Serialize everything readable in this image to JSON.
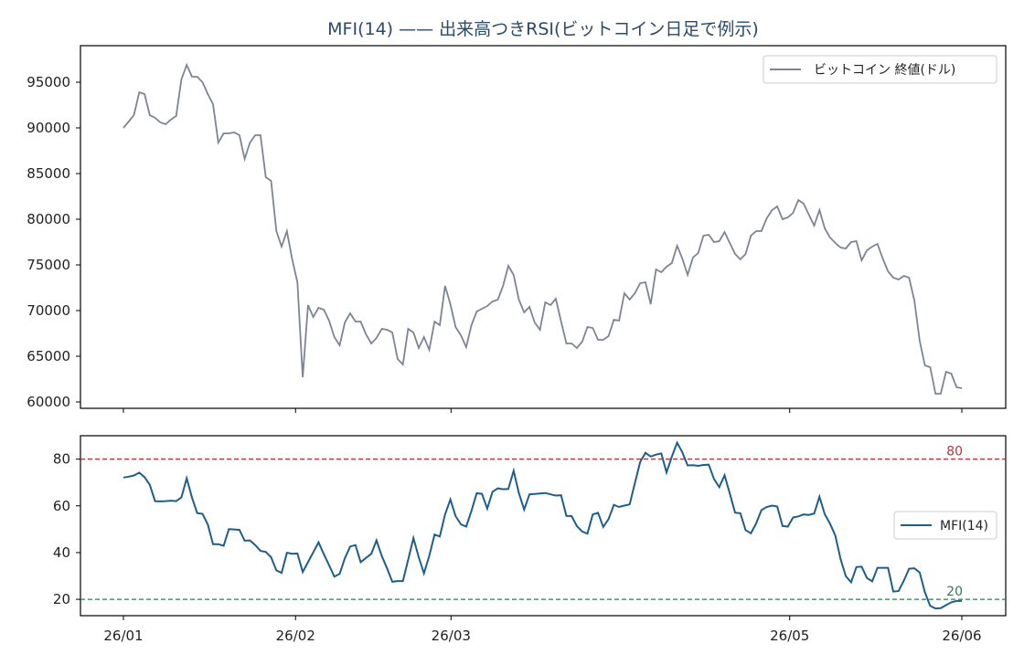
{
  "chart_data": [
    {
      "type": "line",
      "title": "MFI(14) —— 出来高つきRSI(ビットコイン日足で例示)",
      "xlabel": "",
      "ylabel": "",
      "x_range": [
        "2026-01-01",
        "2026-06-01"
      ],
      "ylim": [
        59300,
        99000
      ],
      "y_ticks": [
        60000,
        65000,
        70000,
        75000,
        80000,
        85000,
        90000,
        95000
      ],
      "grid": false,
      "legend": "top-right",
      "series": [
        {
          "name": "ビットコイン 終値(ドル)",
          "color": "#7d8594",
          "values": [
            90000,
            90700,
            91400,
            93900,
            93700,
            91400,
            91100,
            90600,
            90400,
            90900,
            91300,
            95300,
            96900,
            95600,
            95600,
            95000,
            93700,
            92600,
            88400,
            89400,
            89400,
            89500,
            89200,
            86600,
            88400,
            89200,
            89200,
            84600,
            84200,
            78700,
            77000,
            78700,
            75600,
            73100,
            62700,
            70600,
            69300,
            70300,
            70100,
            68900,
            67100,
            66200,
            68700,
            69700,
            68800,
            68800,
            67400,
            66400,
            67000,
            68000,
            67900,
            67600,
            64700,
            64100,
            68000,
            67600,
            65900,
            67100,
            65700,
            68800,
            68400,
            72700,
            70700,
            68200,
            67300,
            66000,
            68400,
            69900,
            70200,
            70500,
            71000,
            71200,
            72700,
            74900,
            73900,
            71200,
            69800,
            70400,
            68700,
            67900,
            70900,
            70600,
            71300,
            68800,
            66400,
            66400,
            65900,
            66600,
            68200,
            68100,
            66800,
            66800,
            67200,
            69000,
            68900,
            71900,
            71200,
            71900,
            73000,
            73100,
            70700,
            74500,
            74200,
            74800,
            75200,
            77100,
            75700,
            73900,
            75800,
            76300,
            78200,
            78300,
            77500,
            77600,
            78600,
            77400,
            76200,
            75600,
            76200,
            78200,
            78700,
            78700,
            80100,
            81000,
            81400,
            80000,
            80200,
            80700,
            82100,
            81700,
            80500,
            79300,
            81000,
            79000,
            78000,
            77400,
            76900,
            76800,
            77500,
            77600,
            75500,
            76600,
            77000,
            77300,
            75700,
            74300,
            73600,
            73400,
            73800,
            73600,
            71100,
            66700,
            64000,
            63800,
            60900,
            60900,
            63300,
            63100,
            61600,
            61500
          ]
        }
      ]
    },
    {
      "type": "line",
      "xlabel": "",
      "ylabel": "",
      "x_range": [
        "2026-01-01",
        "2026-06-01"
      ],
      "ylim": [
        13,
        90
      ],
      "y_ticks": [
        20,
        40,
        60,
        80
      ],
      "x_ticks": [
        "26/01",
        "26/02",
        "26/03",
        "26/05",
        "26/06"
      ],
      "grid": false,
      "legend": "center-right",
      "reference_lines": [
        {
          "value": 80,
          "label": "80",
          "color": "#b5343c"
        },
        {
          "value": 20,
          "label": "20",
          "color": "#2e7d4f"
        }
      ],
      "series": [
        {
          "name": "MFI(14)",
          "color": "#1f5e8c",
          "values": [
            72.1,
            72.5,
            73.0,
            74.2,
            72.3,
            69.0,
            62.0,
            61.9,
            62.0,
            62.2,
            62.0,
            63.6,
            71.8,
            63.5,
            56.9,
            56.6,
            52.0,
            43.6,
            43.6,
            42.9,
            50.0,
            49.9,
            49.7,
            45.1,
            45.2,
            43.2,
            40.7,
            40.3,
            38.0,
            32.4,
            31.3,
            39.9,
            39.5,
            39.6,
            31.7,
            35.9,
            40.1,
            44.4,
            39.3,
            34.6,
            29.7,
            30.9,
            37.6,
            42.6,
            43.2,
            35.9,
            37.7,
            39.5,
            45.2,
            38.5,
            33.2,
            27.5,
            27.8,
            27.8,
            36.9,
            46.2,
            38.0,
            31.1,
            38.6,
            47.7,
            46.9,
            56.3,
            62.7,
            55.6,
            52.1,
            51.1,
            57.8,
            65.4,
            65.1,
            58.8,
            66.0,
            67.5,
            67.1,
            67.2,
            75.0,
            65.5,
            58.4,
            64.9,
            65.1,
            65.3,
            65.5,
            64.9,
            64.4,
            64.5,
            55.7,
            55.6,
            51.3,
            49.0,
            48.1,
            56.3,
            57.0,
            51.0,
            54.3,
            60.4,
            59.5,
            60.1,
            60.6,
            69.7,
            78.8,
            82.7,
            81.1,
            81.9,
            82.4,
            74.3,
            81.0,
            87.0,
            82.9,
            77.3,
            77.4,
            77.1,
            77.5,
            77.6,
            71.5,
            68.0,
            73.1,
            65.3,
            57.1,
            56.8,
            49.6,
            48.2,
            52.5,
            58.2,
            59.5,
            60.1,
            59.7,
            51.4,
            51.1,
            55.0,
            55.5,
            56.3,
            56.1,
            56.7,
            63.9,
            56.4,
            52.4,
            47.3,
            37.2,
            29.9,
            27.3,
            33.8,
            34.0,
            29.1,
            27.7,
            33.5,
            33.5,
            33.5,
            23.3,
            23.5,
            28.0,
            33.1,
            33.3,
            31.5,
            23.0,
            17.2,
            16.1,
            16.2,
            17.5,
            18.7,
            19.3,
            19.3
          ]
        }
      ]
    }
  ]
}
